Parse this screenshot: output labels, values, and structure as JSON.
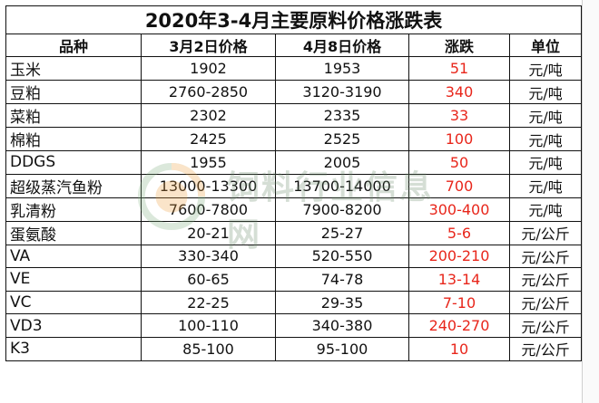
{
  "title": "2020年3-4月主要原料价格涨跌表",
  "headers": [
    "品种",
    "3月2日价格",
    "4月8日价格",
    "涨跌",
    "单位"
  ],
  "rows": [
    {
      "name": "玉米",
      "mar2": "1902",
      "apr8": "1953",
      "change": "51",
      "unit": "元/吨"
    },
    {
      "name": "豆粕",
      "mar2": "2760-2850",
      "apr8": "3120-3190",
      "change": "340",
      "unit": "元/吨"
    },
    {
      "name": "菜粕",
      "mar2": "2302",
      "apr8": "2335",
      "change": "33",
      "unit": "元/吨"
    },
    {
      "name": "棉粕",
      "mar2": "2425",
      "apr8": "2525",
      "change": "100",
      "unit": "元/吨"
    },
    {
      "name": "DDGS",
      "mar2": "1955",
      "apr8": "2005",
      "change": "50",
      "unit": "元/吨"
    },
    {
      "name": "超级蒸汽鱼粉",
      "mar2": "13000-13300",
      "apr8": "13700-14000",
      "change": "700",
      "unit": "元/吨"
    },
    {
      "name": "乳清粉",
      "mar2": "7600-7800",
      "apr8": "7900-8200",
      "change": "300-400",
      "unit": "元/吨"
    },
    {
      "name": "蛋氨酸",
      "mar2": "20-21",
      "apr8": "25-27",
      "change": "5-6",
      "unit": "元/公斤"
    },
    {
      "name": "VA",
      "mar2": "330-340",
      "apr8": "520-550",
      "change": "200-210",
      "unit": "元/公斤"
    },
    {
      "name": "VE",
      "mar2": "60-65",
      "apr8": "74-78",
      "change": "13-14",
      "unit": "元/公斤"
    },
    {
      "name": "VC",
      "mar2": "22-25",
      "apr8": "29-35",
      "change": "7-10",
      "unit": "元/公斤"
    },
    {
      "name": "VD3",
      "mar2": "100-110",
      "apr8": "340-380",
      "change": "240-270",
      "unit": "元/公斤"
    },
    {
      "name": "K3",
      "mar2": "85-100",
      "apr8": "95-100",
      "change": "10",
      "unit": "元/公斤"
    }
  ],
  "watermark": {
    "text": "饲料行业信息网"
  },
  "colors": {
    "change_text": "#e8261b",
    "border": "#111111"
  }
}
